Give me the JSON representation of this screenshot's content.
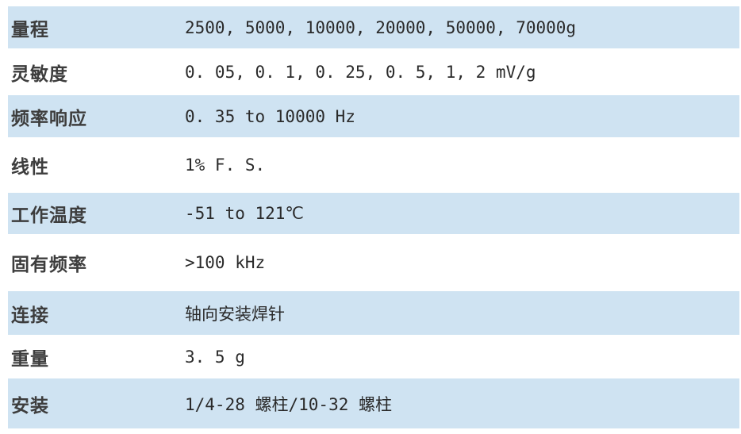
{
  "table": {
    "name": "sensor-specification-table",
    "colors": {
      "row_highlight": "#cfe3f2",
      "label_text": "#3d3d3d",
      "value_text": "#2a2a2a"
    },
    "rows": [
      {
        "label": "量程",
        "value": "2500, 5000, 10000, 20000, 50000, 70000g"
      },
      {
        "label": "灵敏度",
        "value": "0. 05, 0. 1, 0. 25, 0. 5, 1, 2 mV/g"
      },
      {
        "label": "频率响应",
        "value": "0. 35 to 10000 Hz"
      },
      {
        "label": "线性",
        "value": "1% F. S."
      },
      {
        "label": "工作温度",
        "value": "-51 to 121℃"
      },
      {
        "label": "固有频率",
        "value": ">100 kHz"
      },
      {
        "label": "连接",
        "value": "轴向安装焊针"
      },
      {
        "label": "重量",
        "value": "3. 5 g"
      },
      {
        "label": "安装",
        "value": "1/4-28 螺柱/10-32 螺柱"
      }
    ]
  }
}
